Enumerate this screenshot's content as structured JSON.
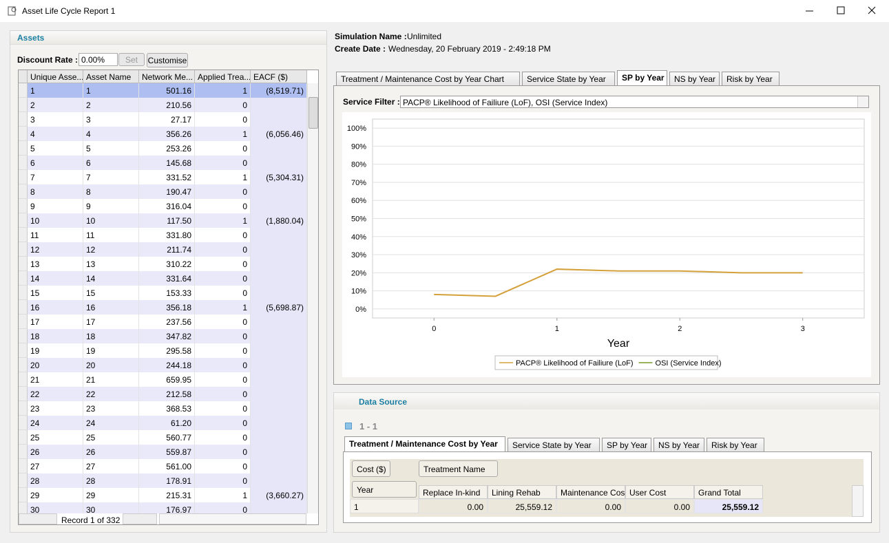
{
  "window": {
    "title": "Asset Life Cycle Report 1"
  },
  "assets": {
    "title": "Assets",
    "discount_rate_label": "Discount Rate :",
    "discount_rate": "0.00%",
    "set_button": "Set",
    "customise_button": "Customise",
    "columns": [
      "Unique Asse...",
      "Asset Name",
      "Network Me...",
      "Applied Trea...",
      "EACF ($)"
    ],
    "rows": [
      [
        "1",
        "1",
        "501.16",
        "1",
        "(8,519.71)"
      ],
      [
        "2",
        "2",
        "210.56",
        "0",
        null
      ],
      [
        "3",
        "3",
        "27.17",
        "0",
        null
      ],
      [
        "4",
        "4",
        "356.26",
        "1",
        "(6,056.46)"
      ],
      [
        "5",
        "5",
        "253.26",
        "0",
        null
      ],
      [
        "6",
        "6",
        "145.68",
        "0",
        null
      ],
      [
        "7",
        "7",
        "331.52",
        "1",
        "(5,304.31)"
      ],
      [
        "8",
        "8",
        "190.47",
        "0",
        null
      ],
      [
        "9",
        "9",
        "316.04",
        "0",
        null
      ],
      [
        "10",
        "10",
        "117.50",
        "1",
        "(1,880.04)"
      ],
      [
        "11",
        "11",
        "331.80",
        "0",
        null
      ],
      [
        "12",
        "12",
        "211.74",
        "0",
        null
      ],
      [
        "13",
        "13",
        "310.22",
        "0",
        null
      ],
      [
        "14",
        "14",
        "331.64",
        "0",
        null
      ],
      [
        "15",
        "15",
        "153.33",
        "0",
        null
      ],
      [
        "16",
        "16",
        "356.18",
        "1",
        "(5,698.87)"
      ],
      [
        "17",
        "17",
        "237.56",
        "0",
        null
      ],
      [
        "18",
        "18",
        "347.82",
        "0",
        null
      ],
      [
        "19",
        "19",
        "295.58",
        "0",
        null
      ],
      [
        "20",
        "20",
        "244.18",
        "0",
        null
      ],
      [
        "21",
        "21",
        "659.95",
        "0",
        null
      ],
      [
        "22",
        "22",
        "212.58",
        "0",
        null
      ],
      [
        "23",
        "23",
        "368.53",
        "0",
        null
      ],
      [
        "24",
        "24",
        "61.20",
        "0",
        null
      ],
      [
        "25",
        "25",
        "560.77",
        "0",
        null
      ],
      [
        "26",
        "26",
        "559.87",
        "0",
        null
      ],
      [
        "27",
        "27",
        "561.00",
        "0",
        null
      ],
      [
        "28",
        "28",
        "178.91",
        "0",
        null
      ],
      [
        "29",
        "29",
        "215.31",
        "1",
        "(3,660.27)"
      ],
      [
        "30",
        "30",
        "176.97",
        "0",
        null
      ]
    ],
    "record": "Record 1 of 332"
  },
  "simulation": {
    "name_label": "Simulation Name :",
    "name": "Unlimited",
    "date_label": "Create Date :",
    "date": "Wednesday, 20 February 2019 - 2:49:18 PM"
  },
  "tabs": {
    "items": [
      "Treatment / Maintenance Cost by Year Chart",
      "Service State by Year",
      "SP by Year",
      "NS by Year",
      "Risk by Year"
    ],
    "active": 2
  },
  "service_filter": {
    "label": "Service Filter :",
    "value": "PACP® Likelihood of Failiure (LoF), OSI (Service Index)"
  },
  "chart_data": {
    "type": "line",
    "x_label": "Year",
    "x": [
      0,
      0.5,
      1,
      1.5,
      2,
      2.5,
      3
    ],
    "xlim": [
      -0.5,
      3.5
    ],
    "xticks": [
      0,
      1,
      2,
      3
    ],
    "ylim": [
      -5,
      105
    ],
    "yticks": [
      {
        "value": 0,
        "label": "0%"
      },
      {
        "value": 10,
        "label": "10%"
      },
      {
        "value": 20,
        "label": "20%"
      },
      {
        "value": 30,
        "label": "30%"
      },
      {
        "value": 40,
        "label": "40%"
      },
      {
        "value": 50,
        "label": "50%"
      },
      {
        "value": 60,
        "label": "60%"
      },
      {
        "value": 70,
        "label": "70%"
      },
      {
        "value": 80,
        "label": "80%"
      },
      {
        "value": 90,
        "label": "90%"
      },
      {
        "value": 100,
        "label": "100%"
      }
    ],
    "grid": true,
    "series": [
      {
        "name": "PACP® Likelihood of Failiure (LoF)",
        "color": "#d4a03a",
        "values": [
          8,
          7,
          22,
          21,
          21,
          20,
          20
        ]
      },
      {
        "name": "OSI (Service Index)",
        "color": "#7a9a2a",
        "values": [
          null,
          null,
          null,
          null,
          null,
          null,
          null
        ]
      }
    ]
  },
  "data_source": {
    "title": "Data Source",
    "group": "1 - 1",
    "tabs": {
      "items": [
        "Treatment / Maintenance Cost by Year",
        "Service State by Year",
        "SP by Year",
        "NS by Year",
        "Risk by Year"
      ],
      "active": 0
    },
    "pivot": {
      "data_field": "Cost ($)",
      "column_field": "Treatment Name",
      "row_field": "Year",
      "columns": [
        "Replace In-kind",
        "Lining Rehab",
        "Maintenance Cost",
        "User Cost",
        "Grand Total"
      ],
      "rows": [
        {
          "label": "1",
          "cells": [
            "0.00",
            "25,559.12",
            "0.00",
            "0.00",
            "25,559.12"
          ]
        }
      ]
    }
  }
}
